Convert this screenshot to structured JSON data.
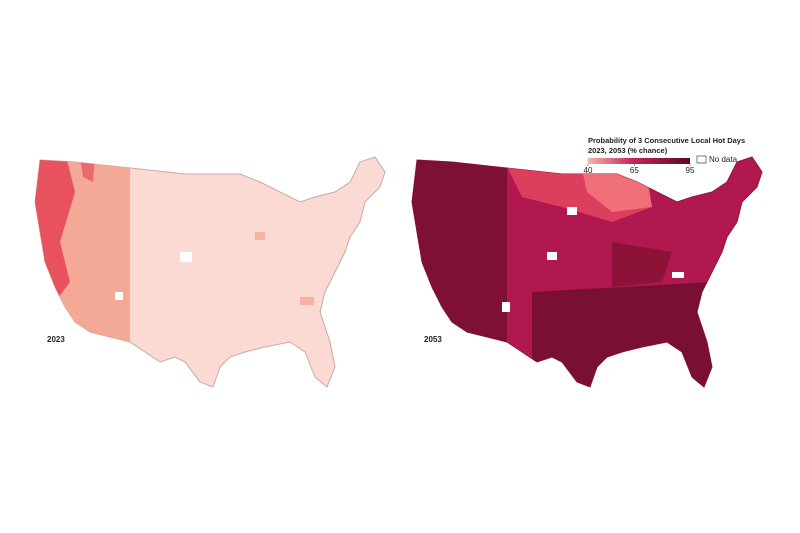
{
  "legend": {
    "title": "Probability of 3 Consecutive Local Hot Days",
    "subtitle": "2023, 2053 (% chance)",
    "ticks": [
      40,
      65,
      95
    ],
    "colors": [
      "#f7b3a6",
      "#c4225c",
      "#5a0a25"
    ],
    "no_data": "No data"
  },
  "maps": [
    {
      "label": "2023"
    },
    {
      "label": "2053"
    }
  ]
}
